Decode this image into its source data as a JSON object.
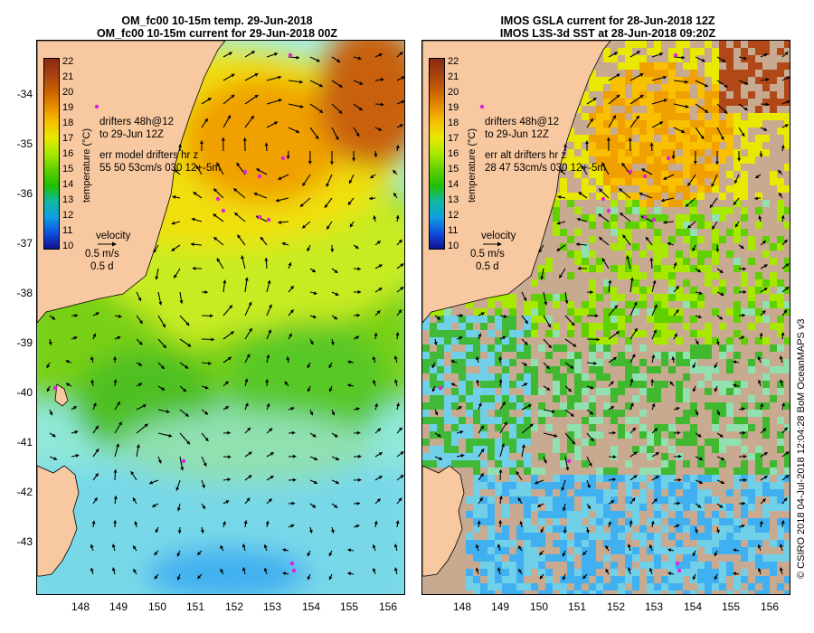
{
  "left_panel": {
    "title_line1": "OM_fc00 10-15m temp. 29-Jun-2018",
    "title_line2": "OM_fc00 10-15m current for 29-Jun-2018 00Z",
    "drifters_line1": "drifters 48h@12",
    "drifters_line2": "to 29-Jun 12Z",
    "err_line1": "err model drifters hr z",
    "err_line2": "55 50 53cm/s 030 12+-5m"
  },
  "right_panel": {
    "title_line1": "IMOS GSLA current for 28-Jun-2018 12Z",
    "title_line2": "IMOS L3S-3d SST at 28-Jun-2018 09:20Z",
    "drifters_line1": "drifters 48h@12",
    "drifters_line2": "to 29-Jun 12Z",
    "err_line1": "err alt drifters hr z",
    "err_line2": "28 47 53cm/s 030 12+-5m"
  },
  "colorbar": {
    "title": "temperature (°C)",
    "ticks": [
      "22",
      "21",
      "20",
      "19",
      "18",
      "17",
      "16",
      "15",
      "14",
      "13",
      "12",
      "11",
      "10"
    ],
    "colors": [
      "#8a2a10",
      "#a84010",
      "#c86000",
      "#e88c00",
      "#f8c000",
      "#e8e800",
      "#a8e800",
      "#60d000",
      "#20c000",
      "#10b8a0",
      "#10a0e0",
      "#1050e0",
      "#101090"
    ]
  },
  "velocity_legend": {
    "label": "velocity",
    "speed": "0.5 m/s",
    "duration": "0.5 d"
  },
  "latitude_labels": [
    "-34",
    "-35",
    "-36",
    "-37",
    "-38",
    "-39",
    "-40",
    "-41",
    "-42",
    "-43"
  ],
  "longitude_labels": [
    "148",
    "149",
    "150",
    "151",
    "152",
    "153",
    "154",
    "155",
    "156"
  ],
  "credit": "© CSIRO 2018   04-Jul-2018 12:04:28 BoM OceanMAPS v3",
  "colors": {
    "land": "#f8c8a0",
    "no_data": "#c8aa90",
    "drifter": "#e020e0",
    "arrow": "#000000"
  }
}
